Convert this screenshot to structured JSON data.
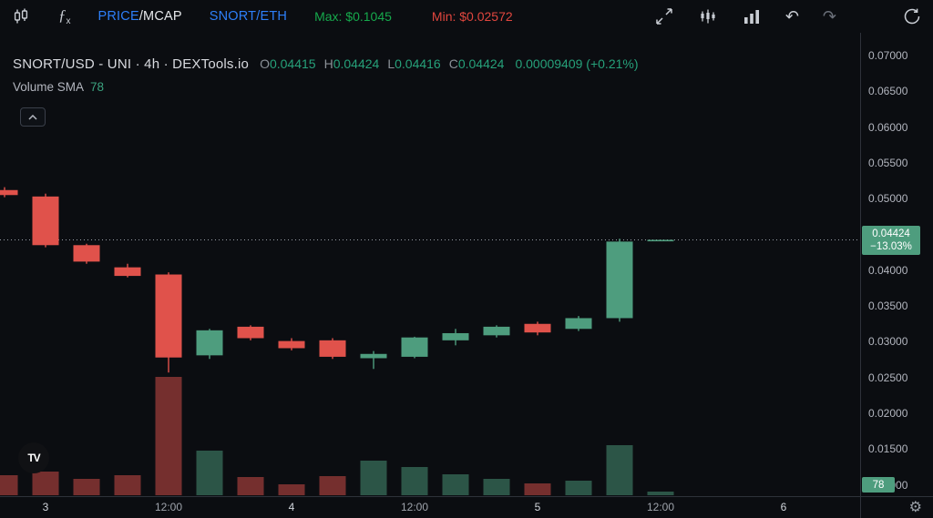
{
  "theme": {
    "bg": "#0b0d11",
    "candle_green": "#4e9d7e",
    "candle_red": "#e0524b",
    "volume_opacity": 0.5,
    "accent_blue": "#2d7ff9",
    "max_green": "#16a94c",
    "min_red": "#e0463e",
    "text_green": "#26a17a",
    "axis_text": "#b2b5be",
    "separator": "#2e323a",
    "badge_green": "#4e9d7e",
    "price_line_color": "#9aa0a8"
  },
  "icons": {
    "chart_type": "candlestick-chart-icon",
    "indicators": "fx-indicator-icon",
    "fullscreen": "fullscreen-icon",
    "candle_style": "candle-style-icon",
    "column_style": "column-style-icon",
    "undo": "↶",
    "redo": "↷",
    "reset": "reset-view-icon",
    "gear": "⚙",
    "tv_logo": "TV",
    "fx_f": "ƒ",
    "fx_x": "x"
  },
  "toolbar": {
    "tab_price_mcap": {
      "active": "PRICE",
      "inactive": "/MCAP"
    },
    "tab_pair": "SNORT/ETH",
    "max_label": "Max: $0.1045",
    "min_label": "Min: $0.02572"
  },
  "legend": {
    "title": "SNORT/USD - UNI · 4h · DEXTools.io",
    "ohlc": [
      {
        "k": "O",
        "v": "0.04415"
      },
      {
        "k": "H",
        "v": "0.04424"
      },
      {
        "k": "L",
        "v": "0.04416"
      },
      {
        "k": "C",
        "v": "0.04424"
      }
    ],
    "change": "0.00009409 (+0.21%)",
    "indicator_name": "Volume SMA",
    "indicator_value": "78"
  },
  "price_axis": {
    "labels": [
      "0.07000",
      "0.06500",
      "0.06000",
      "0.05500",
      "0.05000",
      "0.04000",
      "0.03500",
      "0.03000",
      "0.02500",
      "0.02000",
      "0.01500",
      "0.01000"
    ],
    "badge": {
      "price": "0.04424",
      "change": "−13.03%"
    },
    "volume_badge": "78"
  },
  "time_axis": {
    "ticks": [
      {
        "label": "3",
        "i": 1,
        "major": true
      },
      {
        "label": "12:00",
        "i": 4,
        "major": false
      },
      {
        "label": "4",
        "i": 7,
        "major": true
      },
      {
        "label": "12:00",
        "i": 10,
        "major": false
      },
      {
        "label": "5",
        "i": 13,
        "major": true
      },
      {
        "label": "12:00",
        "i": 16,
        "major": false
      },
      {
        "label": "6",
        "i": 19,
        "major": true
      }
    ]
  },
  "chart_data": {
    "type": "candlestick",
    "title": "SNORT/USD - UNI · 4h · DEXTools.io",
    "symbol": "SNORT/USD",
    "venue": "UNI",
    "interval": "4h",
    "source": "DEXTools.io",
    "legend_ohlc": {
      "open": 0.04415,
      "high": 0.04424,
      "low": 0.04416,
      "close": 0.04424,
      "change_abs": 9.409e-05,
      "change_pct": 0.21
    },
    "max_price": 0.1045,
    "min_price": 0.02572,
    "price_line": {
      "value": 0.04424,
      "change_pct": -13.03
    },
    "volume_sma": 78,
    "y_axis": {
      "visible_ticks": [
        0.07,
        0.065,
        0.06,
        0.055,
        0.05,
        0.04,
        0.035,
        0.03,
        0.025,
        0.02,
        0.015,
        0.01
      ],
      "grid": false
    },
    "x_axis": {
      "tick_labels": [
        "3",
        "12:00",
        "4",
        "12:00",
        "5",
        "12:00",
        "6"
      ],
      "days": [
        "3",
        "4",
        "5",
        "6"
      ]
    },
    "volume_units": "relative fraction of largest bar",
    "candles": [
      {
        "o": 0.0512,
        "h": 0.0516,
        "l": 0.0502,
        "c": 0.0505,
        "v": 0.17
      },
      {
        "o": 0.0503,
        "h": 0.0507,
        "l": 0.0432,
        "c": 0.0435,
        "v": 0.2
      },
      {
        "o": 0.0435,
        "h": 0.0437,
        "l": 0.0409,
        "c": 0.0412,
        "v": 0.14
      },
      {
        "o": 0.0404,
        "h": 0.0409,
        "l": 0.039,
        "c": 0.0392,
        "v": 0.17
      },
      {
        "o": 0.0394,
        "h": 0.0397,
        "l": 0.0257,
        "c": 0.0278,
        "v": 1.0
      },
      {
        "o": 0.0281,
        "h": 0.0318,
        "l": 0.0276,
        "c": 0.0316,
        "v": 0.38
      },
      {
        "o": 0.0321,
        "h": 0.0323,
        "l": 0.0302,
        "c": 0.0305,
        "v": 0.15
      },
      {
        "o": 0.0301,
        "h": 0.0305,
        "l": 0.0288,
        "c": 0.0291,
        "v": 0.09
      },
      {
        "o": 0.0302,
        "h": 0.0305,
        "l": 0.0276,
        "c": 0.0279,
        "v": 0.16
      },
      {
        "o": 0.0277,
        "h": 0.0287,
        "l": 0.0262,
        "c": 0.0283,
        "v": 0.29
      },
      {
        "o": 0.0279,
        "h": 0.0307,
        "l": 0.0277,
        "c": 0.0306,
        "v": 0.24
      },
      {
        "o": 0.0302,
        "h": 0.0318,
        "l": 0.0295,
        "c": 0.0312,
        "v": 0.18
      },
      {
        "o": 0.0309,
        "h": 0.0323,
        "l": 0.0306,
        "c": 0.0321,
        "v": 0.14
      },
      {
        "o": 0.0325,
        "h": 0.0328,
        "l": 0.0309,
        "c": 0.0313,
        "v": 0.1
      },
      {
        "o": 0.0318,
        "h": 0.0336,
        "l": 0.0315,
        "c": 0.0333,
        "v": 0.12
      },
      {
        "o": 0.0333,
        "h": 0.0444,
        "l": 0.0328,
        "c": 0.044,
        "v": 0.42
      },
      {
        "o": 0.04415,
        "h": 0.04424,
        "l": 0.04416,
        "c": 0.04424,
        "v": 0.03
      }
    ]
  }
}
